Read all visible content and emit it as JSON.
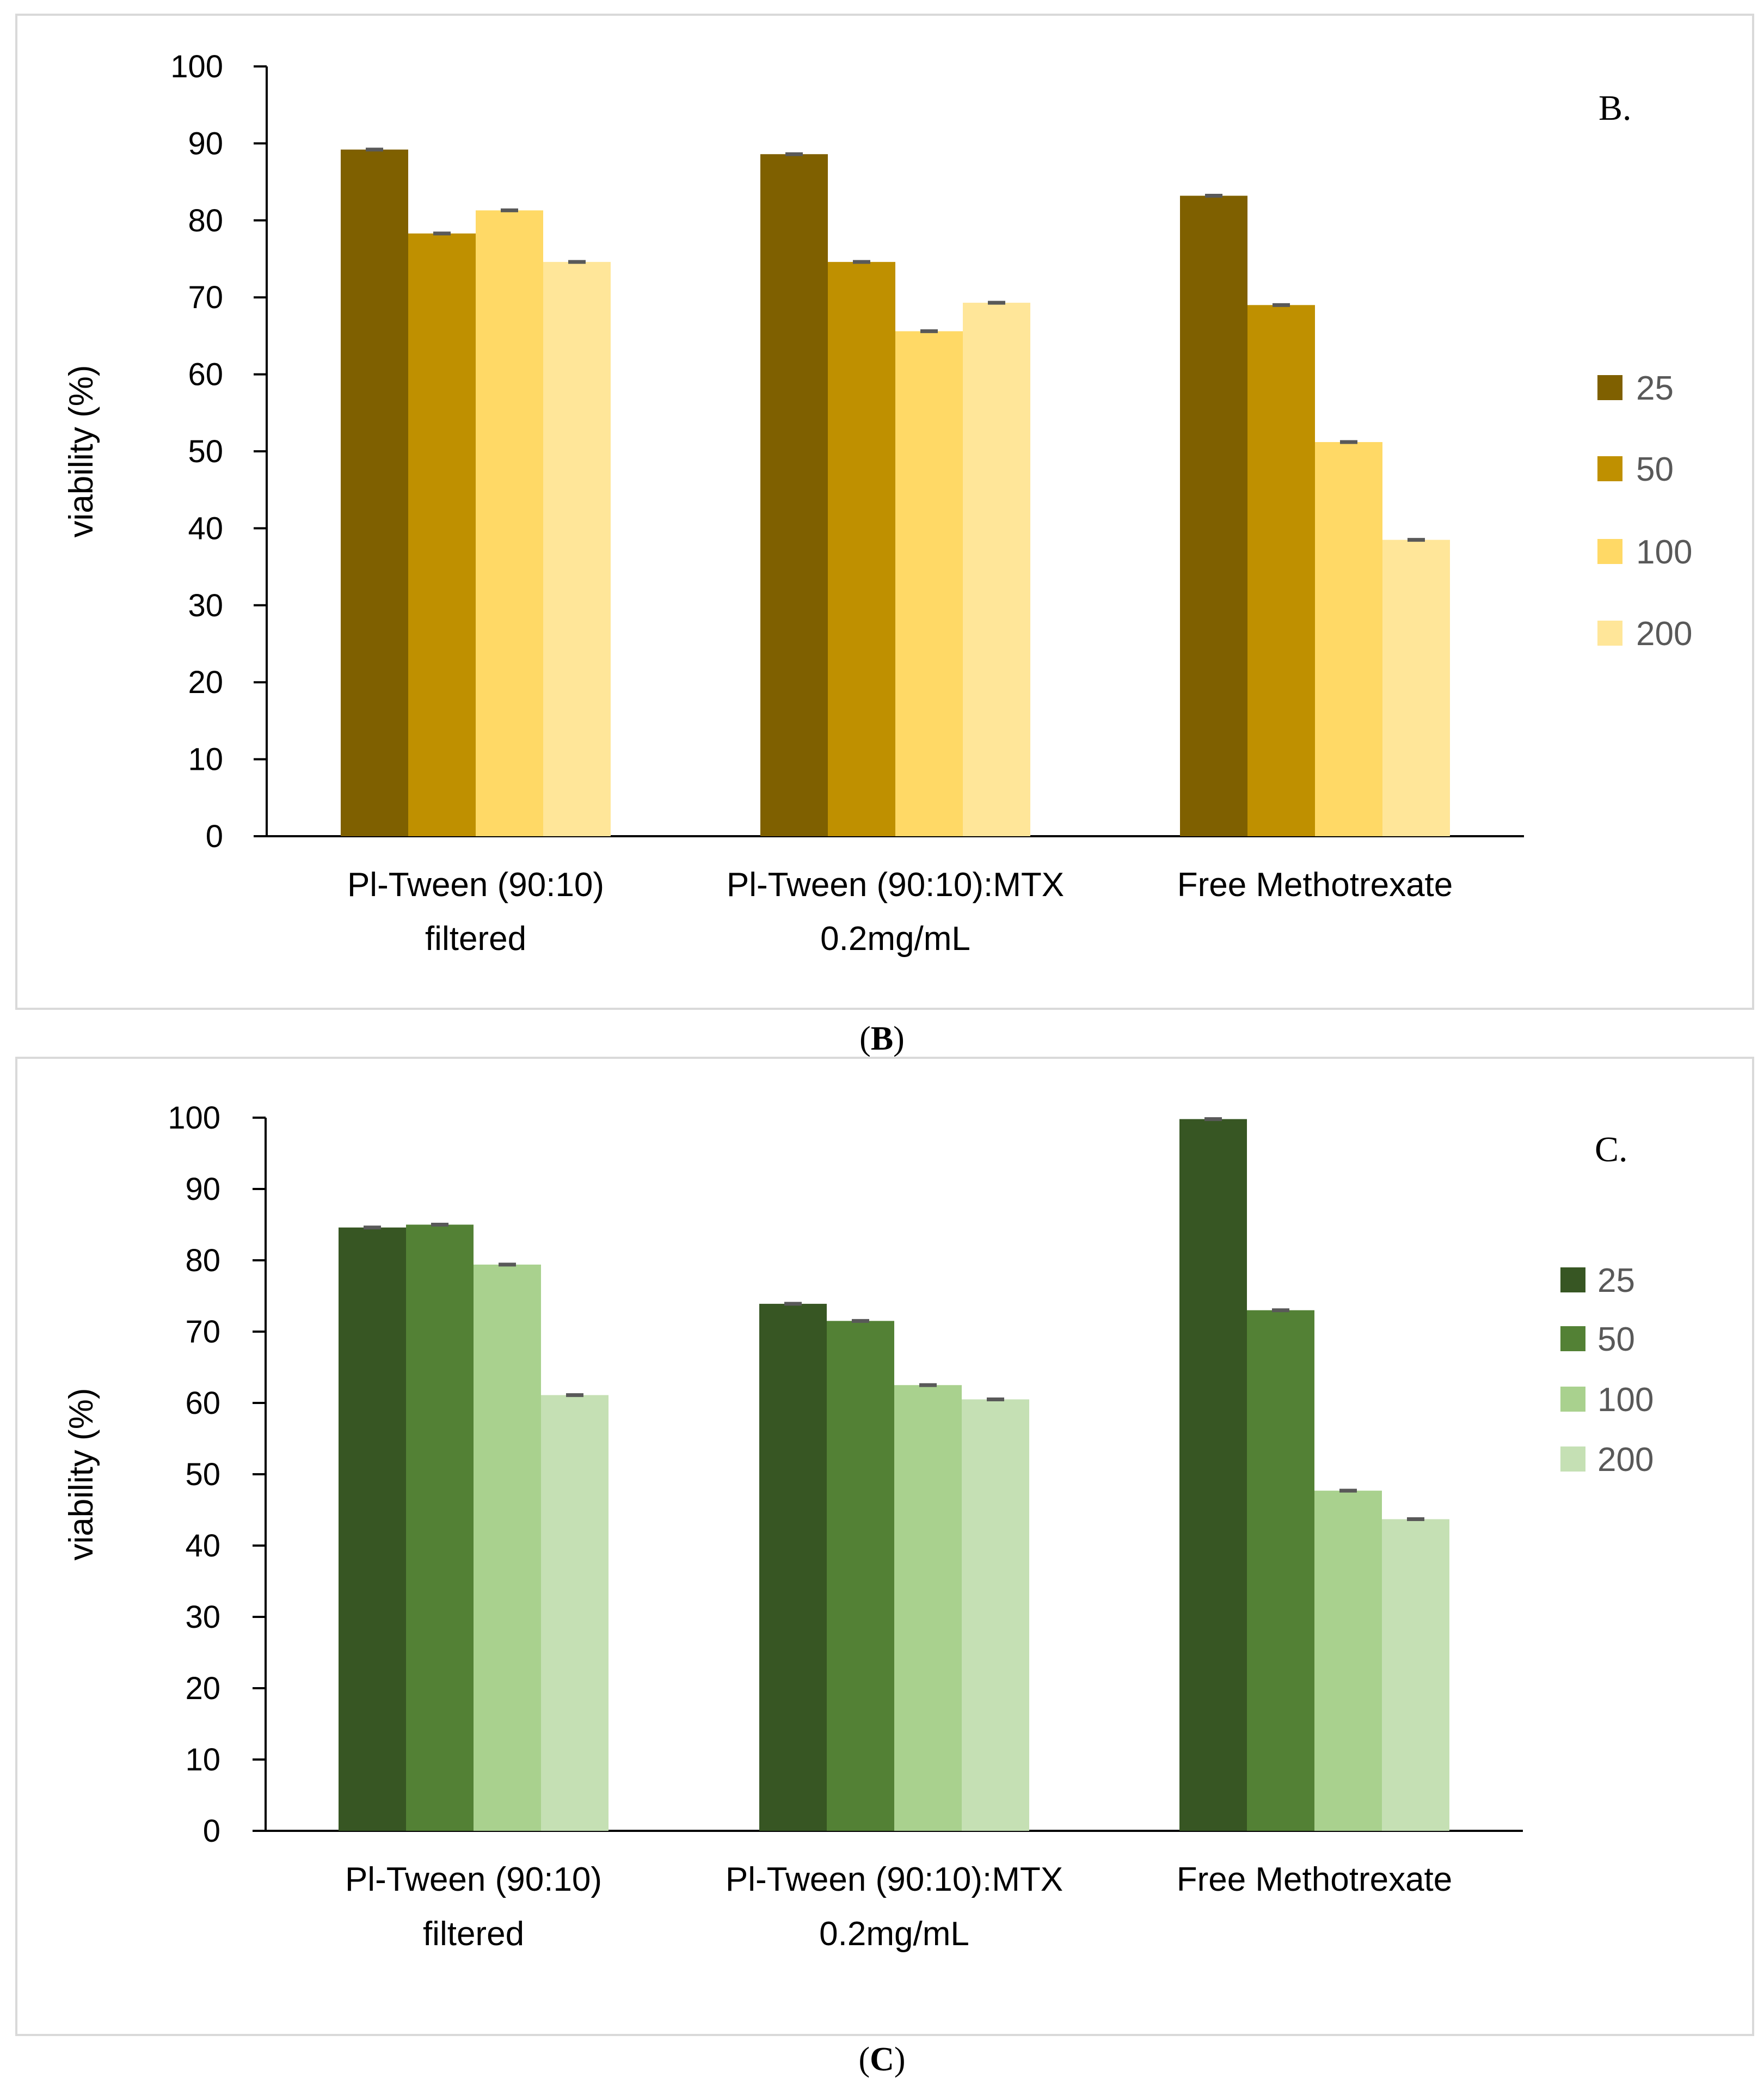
{
  "chart_data": [
    {
      "type": "bar",
      "panel_label": "B.",
      "caption_letter": "B",
      "ylabel": "viability (%)",
      "ylim": [
        0,
        100
      ],
      "yticks": [
        0,
        10,
        20,
        30,
        40,
        50,
        60,
        70,
        80,
        90,
        100
      ],
      "grid": false,
      "error_bars": true,
      "legend_position": "right",
      "categories": [
        [
          "Pl-Tween (90:10)",
          "filtered"
        ],
        [
          "Pl-Tween (90:10):MTX",
          "0.2mg/mL"
        ],
        [
          "Free Methotrexate"
        ]
      ],
      "series": [
        {
          "name": "25",
          "color": "#7f6000",
          "values": [
            89.2,
            88.6,
            83.2
          ]
        },
        {
          "name": "50",
          "color": "#bf9000",
          "values": [
            78.3,
            74.6,
            69.0
          ]
        },
        {
          "name": "100",
          "color": "#ffd966",
          "values": [
            81.3,
            65.6,
            51.2
          ]
        },
        {
          "name": "200",
          "color": "#ffe699",
          "values": [
            74.6,
            69.3,
            38.5
          ]
        }
      ]
    },
    {
      "type": "bar",
      "panel_label": "C.",
      "caption_letter": "C",
      "ylabel": "viability (%)",
      "ylim": [
        0,
        100
      ],
      "yticks": [
        0,
        10,
        20,
        30,
        40,
        50,
        60,
        70,
        80,
        90,
        100
      ],
      "grid": false,
      "error_bars": true,
      "legend_position": "right",
      "categories": [
        [
          "Pl-Tween (90:10)",
          "filtered"
        ],
        [
          "Pl-Tween (90:10):MTX",
          "0.2mg/mL"
        ],
        [
          "Free Methotrexate"
        ]
      ],
      "series": [
        {
          "name": "25",
          "color": "#375623",
          "values": [
            84.6,
            73.9,
            99.8
          ]
        },
        {
          "name": "50",
          "color": "#538135",
          "values": [
            85.0,
            71.5,
            73.0
          ]
        },
        {
          "name": "100",
          "color": "#a9d18e",
          "values": [
            79.4,
            62.5,
            47.7
          ]
        },
        {
          "name": "200",
          "color": "#c5e0b4",
          "values": [
            61.1,
            60.5,
            43.7
          ]
        }
      ]
    }
  ]
}
